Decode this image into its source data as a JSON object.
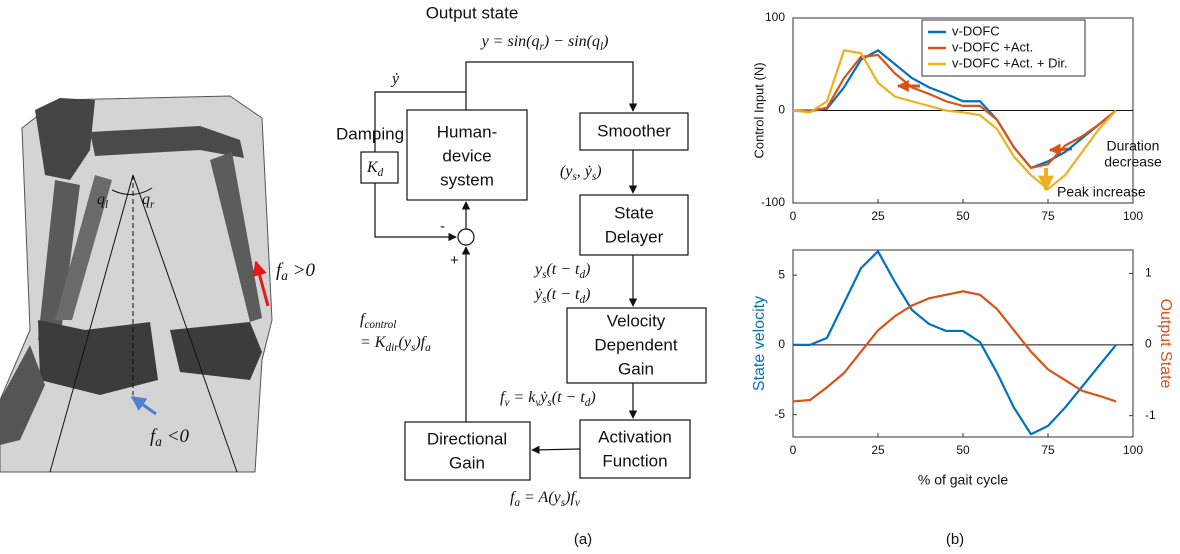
{
  "illustration": {
    "q_left": [
      "q",
      "l"
    ],
    "q_right": [
      "q",
      "r"
    ],
    "force_positive": [
      "f",
      "a",
      " >0"
    ],
    "force_negative": [
      "f",
      "a",
      " <0"
    ]
  },
  "diagram": {
    "output_state": "Output state",
    "output_equation": [
      "y = sin(q",
      "r",
      ") − sin(q",
      "l",
      ")"
    ],
    "y_dot": "ẏ",
    "damping": "Damping",
    "damping_gain": [
      "K",
      "d"
    ],
    "human_device_system": [
      "Human-",
      "device",
      "system"
    ],
    "smoother": "Smoother",
    "smoothed_state": [
      "(y",
      "s",
      ", ẏ",
      "s",
      ")"
    ],
    "state_delayer": [
      "State",
      "Delayer"
    ],
    "delayed_state": [
      "y",
      "s",
      "(t − t",
      "d",
      ")"
    ],
    "delayed_velocity": [
      "ẏ",
      "s",
      "(t − t",
      "d",
      ")"
    ],
    "velocity_dependent_gain": [
      "Velocity",
      "Dependent",
      "Gain"
    ],
    "velocity_equation": [
      "f",
      "v",
      " = k",
      "v",
      "ẏ",
      "s",
      "(t − t",
      "d",
      ")"
    ],
    "activation_function": [
      "Activation",
      "Function"
    ],
    "activation_equation": [
      "f",
      "a",
      " = A(y",
      "s",
      ")f",
      "v"
    ],
    "directional_gain": [
      "Directional",
      "Gain"
    ],
    "control_label": [
      "f",
      "control"
    ],
    "control_equation": [
      "= K",
      "dir",
      "(y",
      "s",
      ")f",
      "a"
    ],
    "minus": "-",
    "plus": "+"
  },
  "chart_data": [
    {
      "type": "line",
      "ylabel": "Control Input (N)",
      "x": [
        0,
        5,
        10,
        15,
        20,
        25,
        30,
        35,
        40,
        45,
        50,
        55,
        60,
        65,
        70,
        75,
        80,
        85,
        90,
        95
      ],
      "series": [
        {
          "name": "v-DOFC",
          "color": "#0072bd",
          "values": [
            0,
            0,
            2,
            25,
            55,
            65,
            50,
            35,
            25,
            18,
            10,
            10,
            -10,
            -40,
            -62,
            -55,
            -45,
            -30,
            -15,
            0
          ]
        },
        {
          "name": "v-DOFC +Act.",
          "color": "#d95319",
          "values": [
            0,
            -1,
            3,
            35,
            58,
            60,
            40,
            25,
            18,
            10,
            5,
            5,
            -10,
            -40,
            -62,
            -58,
            -38,
            -28,
            -15,
            0
          ]
        },
        {
          "name": "v-DOFC +Act. + Dir.",
          "color": "#edb120",
          "values": [
            0,
            -2,
            10,
            65,
            62,
            30,
            15,
            10,
            5,
            0,
            -2,
            -5,
            -20,
            -50,
            -70,
            -85,
            -70,
            -45,
            -20,
            0
          ]
        }
      ],
      "xlim": [
        0,
        100
      ],
      "xticks": [
        0,
        25,
        50,
        75,
        100
      ],
      "ylim": [
        -100,
        100
      ],
      "yticks": [
        -100,
        0,
        100
      ],
      "legend": "upper right",
      "annotations": [
        [
          "Duration",
          "decrease"
        ],
        [
          "Peak increase"
        ]
      ]
    },
    {
      "type": "line",
      "xlabel": "% of gait cycle",
      "ylabel": "State velocity",
      "y2label": "Output State",
      "x": [
        0,
        5,
        10,
        15,
        20,
        25,
        30,
        35,
        40,
        45,
        50,
        55,
        60,
        65,
        70,
        75,
        80,
        85,
        90,
        95
      ],
      "series": [
        {
          "color": "#0072bd",
          "values": [
            0,
            0,
            0.5,
            3,
            5.5,
            6.7,
            4.5,
            2.5,
            1.5,
            1,
            1,
            0.2,
            -2,
            -4.5,
            -6.4,
            -5.8,
            -4.5,
            -3,
            -1.5,
            0
          ]
        },
        {
          "color": "#d95319",
          "axis": "y2",
          "values": [
            -0.8,
            -0.78,
            -0.6,
            -0.4,
            -0.1,
            0.2,
            0.4,
            0.55,
            0.65,
            0.7,
            0.75,
            0.7,
            0.5,
            0.2,
            -0.1,
            -0.35,
            -0.5,
            -0.65,
            -0.72,
            -0.8
          ]
        }
      ],
      "xlim": [
        0,
        100
      ],
      "xticks": [
        0,
        25,
        50,
        75,
        100
      ],
      "ylim": [
        -6.6,
        6.8
      ],
      "yticks": [
        -5,
        0,
        5
      ],
      "y2lim": [
        -1.3,
        1.33
      ],
      "y2ticks": [
        -1,
        0,
        1
      ]
    }
  ],
  "captions": [
    "(a)",
    "(b)"
  ]
}
